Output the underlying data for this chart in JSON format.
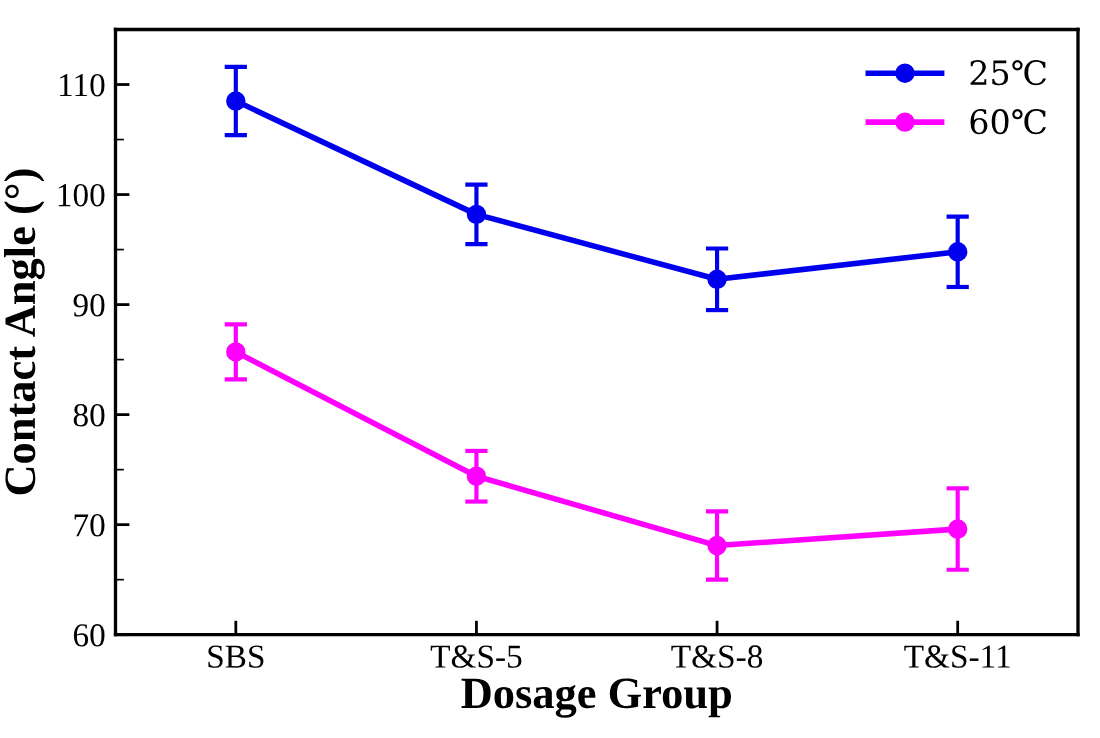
{
  "chart_data": {
    "type": "line",
    "xlabel": "Dosage Group",
    "ylabel": "Contact Angle (°)",
    "categories": [
      "SBS",
      "T&S-5",
      "T&S-8",
      "T&S-11"
    ],
    "series": [
      {
        "name": "25℃",
        "color": "#0000ee",
        "values": [
          108.5,
          98.2,
          92.3,
          94.8
        ],
        "errors": [
          3.1,
          2.7,
          2.8,
          3.2
        ]
      },
      {
        "name": "60℃",
        "color": "#ff00ff",
        "values": [
          85.7,
          74.4,
          68.1,
          69.6
        ],
        "errors": [
          2.5,
          2.3,
          3.1,
          3.7
        ]
      }
    ],
    "ylim": [
      60,
      115
    ],
    "yticks": [
      60,
      {
        "value": 65,
        "label": null
      },
      70,
      {
        "value": 75,
        "label": null
      },
      80,
      {
        "value": 85,
        "label": null
      },
      90,
      {
        "value": 95,
        "label": null
      },
      100,
      {
        "value": 105,
        "label": null
      },
      110
    ],
    "marker": "circle",
    "line_style": "solid",
    "legend": "top right",
    "grid": false
  }
}
